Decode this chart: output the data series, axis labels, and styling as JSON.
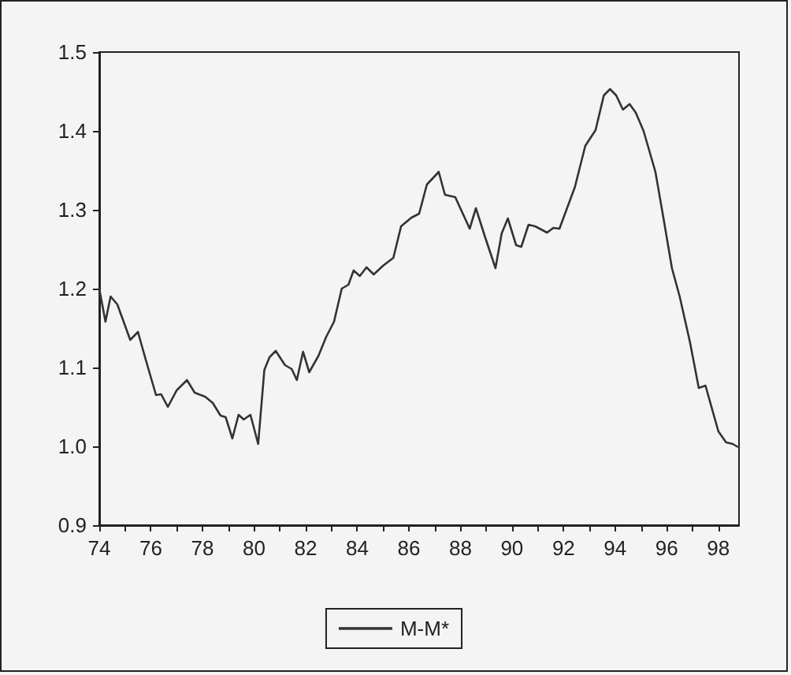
{
  "chart_data": {
    "type": "line",
    "series": [
      {
        "name": "M-M*",
        "color": "#333333",
        "x": [
          74.0,
          74.24,
          74.44,
          74.7,
          75.2,
          75.5,
          75.8,
          76.2,
          76.4,
          76.66,
          77.0,
          77.4,
          77.7,
          78.1,
          78.4,
          78.7,
          78.9,
          79.16,
          79.4,
          79.6,
          79.86,
          80.16,
          80.4,
          80.6,
          80.84,
          81.2,
          81.46,
          81.66,
          81.9,
          82.14,
          82.5,
          82.8,
          83.1,
          83.4,
          83.66,
          83.86,
          84.1,
          84.36,
          84.64,
          85.0,
          85.4,
          85.7,
          86.1,
          86.4,
          86.7,
          87.16,
          87.4,
          87.8,
          88.36,
          88.6,
          88.96,
          89.36,
          89.6,
          89.84,
          90.16,
          90.36,
          90.64,
          90.9,
          91.36,
          91.6,
          91.84,
          92.44,
          92.84,
          93.24,
          93.56,
          93.8,
          94.04,
          94.3,
          94.56,
          94.8,
          95.1,
          95.56,
          95.9,
          96.2,
          96.5,
          96.9,
          97.24,
          97.5,
          98.0,
          98.3,
          98.56,
          98.76
        ],
        "values": [
          1.2,
          1.158,
          1.19,
          1.18,
          1.135,
          1.145,
          1.11,
          1.065,
          1.066,
          1.05,
          1.071,
          1.084,
          1.068,
          1.063,
          1.055,
          1.039,
          1.037,
          1.01,
          1.04,
          1.034,
          1.04,
          1.003,
          1.097,
          1.113,
          1.121,
          1.103,
          1.098,
          1.084,
          1.12,
          1.094,
          1.115,
          1.139,
          1.158,
          1.2,
          1.205,
          1.223,
          1.216,
          1.227,
          1.218,
          1.229,
          1.239,
          1.279,
          1.29,
          1.295,
          1.332,
          1.348,
          1.319,
          1.316,
          1.276,
          1.302,
          1.265,
          1.226,
          1.27,
          1.289,
          1.255,
          1.253,
          1.281,
          1.279,
          1.271,
          1.277,
          1.276,
          1.329,
          1.381,
          1.401,
          1.445,
          1.453,
          1.445,
          1.427,
          1.434,
          1.423,
          1.4,
          1.348,
          1.284,
          1.226,
          1.19,
          1.132,
          1.074,
          1.077,
          1.019,
          1.005,
          1.003,
          0.999
        ]
      }
    ],
    "xlim": [
      74,
      98.8
    ],
    "xticks": [
      74,
      {
        "value": 75,
        "label": null
      },
      76,
      {
        "value": 77,
        "label": null
      },
      78,
      {
        "value": 79,
        "label": null
      },
      80,
      {
        "value": 81,
        "label": null
      },
      82,
      {
        "value": 83,
        "label": null
      },
      84,
      {
        "value": 85,
        "label": null
      },
      86,
      {
        "value": 87,
        "label": null
      },
      88,
      {
        "value": 89,
        "label": null
      },
      90,
      {
        "value": 91,
        "label": null
      },
      92,
      {
        "value": 93,
        "label": null
      },
      94,
      {
        "value": 95,
        "label": null
      },
      96,
      {
        "value": 97,
        "label": null
      },
      98
    ],
    "ylim": [
      0.9,
      1.5
    ],
    "yticks": [
      0.9,
      {
        "value": 1,
        "label": "1.0"
      },
      1.1,
      1.2,
      1.3,
      1.4,
      1.5
    ],
    "grid": false,
    "legend": "bottom",
    "marker": "none",
    "line_style": "solid"
  }
}
